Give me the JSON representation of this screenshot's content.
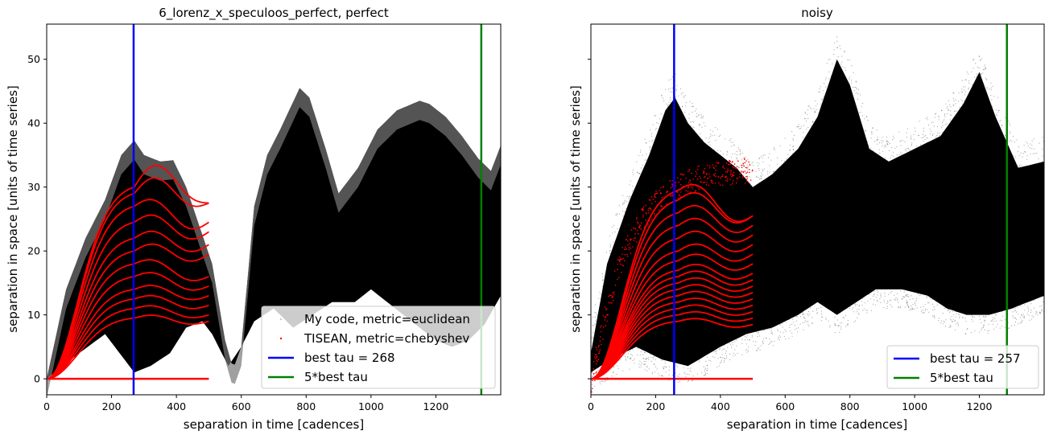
{
  "chart_data": [
    {
      "type": "scatter",
      "title": "6_lorenz_x_speculoos_perfect, perfect",
      "xlabel": "separation in time [cadences]",
      "ylabel": "separation in space [units of time series]",
      "xlim": [
        0,
        1400
      ],
      "ylim": [
        -2.5,
        55.5
      ],
      "xticks": [
        0,
        200,
        400,
        600,
        800,
        1000,
        1200
      ],
      "yticks": [
        0,
        10,
        20,
        30,
        40,
        50
      ],
      "colors": {
        "cloud": "#000000",
        "tisean": "#ff0000",
        "best_tau": "#0000ff",
        "five_tau": "#008000"
      },
      "cloud_upper": [
        [
          0,
          0
        ],
        [
          60,
          14
        ],
        [
          120,
          22
        ],
        [
          180,
          28
        ],
        [
          230,
          35
        ],
        [
          270,
          37.3
        ],
        [
          300,
          35
        ],
        [
          350,
          34
        ],
        [
          390,
          34.2
        ],
        [
          430,
          30
        ],
        [
          470,
          24
        ],
        [
          510,
          18
        ],
        [
          550,
          6
        ],
        [
          575,
          1.5
        ],
        [
          600,
          5
        ],
        [
          640,
          27
        ],
        [
          680,
          35
        ],
        [
          720,
          39
        ],
        [
          780,
          45.5
        ],
        [
          810,
          44
        ],
        [
          860,
          36
        ],
        [
          900,
          29
        ],
        [
          960,
          33
        ],
        [
          1020,
          39
        ],
        [
          1080,
          42
        ],
        [
          1150,
          43.5
        ],
        [
          1180,
          43
        ],
        [
          1230,
          41
        ],
        [
          1280,
          38
        ],
        [
          1330,
          34.5
        ],
        [
          1370,
          32.5
        ],
        [
          1400,
          36.5
        ]
      ],
      "cloud_lower": [
        [
          0,
          0
        ],
        [
          100,
          4
        ],
        [
          180,
          7
        ],
        [
          240,
          3
        ],
        [
          270,
          1
        ],
        [
          320,
          2
        ],
        [
          380,
          4
        ],
        [
          430,
          8
        ],
        [
          480,
          9
        ],
        [
          510,
          7
        ],
        [
          560,
          2
        ],
        [
          600,
          5
        ],
        [
          640,
          9
        ],
        [
          700,
          11
        ],
        [
          760,
          8
        ],
        [
          820,
          10
        ],
        [
          880,
          12
        ],
        [
          950,
          12
        ],
        [
          1000,
          14
        ],
        [
          1100,
          10
        ],
        [
          1150,
          8
        ],
        [
          1200,
          6
        ],
        [
          1250,
          5
        ],
        [
          1300,
          6
        ],
        [
          1350,
          8.5
        ],
        [
          1400,
          13
        ]
      ],
      "tisean_curve_ends": [
        9,
        10,
        11.5,
        13,
        14.5,
        16,
        19.5,
        21,
        23,
        24.5,
        27.5
      ],
      "tisean_peaks": [
        {
          "peak": 9.5,
          "bump": 0
        },
        {
          "peak": 11,
          "bump": 0
        },
        {
          "peak": 12.5,
          "bump": 0
        },
        {
          "peak": 14,
          "bump": 0
        },
        {
          "peak": 16,
          "bump": 0
        },
        {
          "peak": 18,
          "bump": 0
        },
        {
          "peak": 20,
          "bump": 0
        },
        {
          "peak": 22,
          "bump": 0
        },
        {
          "peak": 24.5,
          "bump": 0
        },
        {
          "peak": 27,
          "bump": 0
        },
        {
          "peak": 29,
          "bump": 1
        },
        {
          "peak": 30,
          "bump": 2
        }
      ],
      "tisean_baseline": {
        "x": [
          0,
          500
        ],
        "y": 0
      },
      "vlines": [
        {
          "x": 268,
          "label": "best tau = 268",
          "color": "#0000ff"
        },
        {
          "x": 1340,
          "label": "5*best tau",
          "color": "#008000"
        }
      ],
      "legend": {
        "position": "lower-right",
        "entries": [
          {
            "label": "My code, metric=euclidean",
            "kind": "cloud",
            "color": "#c8c8c8"
          },
          {
            "label": "TISEAN, metric=chebyshev",
            "kind": "dot",
            "color": "#ff0000"
          },
          {
            "label": "best tau = 268",
            "kind": "line",
            "color": "#0000ff"
          },
          {
            "label": "5*best tau",
            "kind": "line",
            "color": "#008000"
          }
        ]
      }
    },
    {
      "type": "scatter",
      "title": "noisy",
      "xlabel": "separation in time [cadences]",
      "ylabel": "separation in space [units of time series]",
      "xlim": [
        0,
        1400
      ],
      "ylim": [
        -2.5,
        55.5
      ],
      "xticks": [
        0,
        200,
        400,
        600,
        800,
        1000,
        1200
      ],
      "yticks": [
        0,
        10,
        20,
        30,
        40,
        50
      ],
      "colors": {
        "cloud": "#000000",
        "tisean": "#ff0000",
        "best_tau": "#0000ff",
        "five_tau": "#008000"
      },
      "cloud_upper": [
        [
          0,
          4
        ],
        [
          50,
          18
        ],
        [
          120,
          28
        ],
        [
          180,
          35
        ],
        [
          230,
          42
        ],
        [
          260,
          44
        ],
        [
          300,
          40
        ],
        [
          350,
          37
        ],
        [
          400,
          35
        ],
        [
          450,
          33
        ],
        [
          500,
          30
        ],
        [
          560,
          32
        ],
        [
          640,
          36
        ],
        [
          700,
          41
        ],
        [
          760,
          50
        ],
        [
          800,
          46
        ],
        [
          860,
          36
        ],
        [
          920,
          34
        ],
        [
          1000,
          36
        ],
        [
          1080,
          38
        ],
        [
          1150,
          43
        ],
        [
          1200,
          48
        ],
        [
          1250,
          41
        ],
        [
          1320,
          33
        ],
        [
          1400,
          34
        ]
      ],
      "cloud_lower": [
        [
          0,
          1
        ],
        [
          60,
          3
        ],
        [
          140,
          5
        ],
        [
          220,
          3
        ],
        [
          300,
          2
        ],
        [
          400,
          5
        ],
        [
          480,
          7
        ],
        [
          560,
          8
        ],
        [
          640,
          10
        ],
        [
          700,
          12
        ],
        [
          760,
          10
        ],
        [
          820,
          12
        ],
        [
          880,
          14
        ],
        [
          960,
          14
        ],
        [
          1040,
          13
        ],
        [
          1100,
          11
        ],
        [
          1160,
          10
        ],
        [
          1230,
          10
        ],
        [
          1300,
          11
        ],
        [
          1400,
          13
        ]
      ],
      "tisean_curve_ends": [
        8.5,
        9.5,
        10.5,
        11.5,
        12.5,
        13.5,
        14.5,
        15.5,
        16.5,
        18,
        19.5,
        21,
        22.5,
        24,
        25.5
      ],
      "tisean_peaks": [
        {
          "peak": 9,
          "bump": 0
        },
        {
          "peak": 10,
          "bump": 0
        },
        {
          "peak": 11,
          "bump": 0
        },
        {
          "peak": 12,
          "bump": 0
        },
        {
          "peak": 13,
          "bump": 0
        },
        {
          "peak": 14,
          "bump": 0
        },
        {
          "peak": 15,
          "bump": 0
        },
        {
          "peak": 16,
          "bump": 0
        },
        {
          "peak": 17,
          "bump": 0
        },
        {
          "peak": 18.5,
          "bump": 0
        },
        {
          "peak": 20,
          "bump": 0
        },
        {
          "peak": 22,
          "bump": 0
        },
        {
          "peak": 24,
          "bump": 0
        },
        {
          "peak": 26,
          "bump": 0
        },
        {
          "peak": 28,
          "bump": 0
        },
        {
          "peak": 29.5,
          "bump": 0
        }
      ],
      "tisean_scatter_band": {
        "x_range": [
          0,
          500
        ],
        "y_peak": 35
      },
      "tisean_baseline": {
        "x": [
          0,
          500
        ],
        "y": 0
      },
      "vlines": [
        {
          "x": 257,
          "label": "best tau = 257",
          "color": "#0000ff"
        },
        {
          "x": 1285,
          "label": "5*best tau",
          "color": "#008000"
        }
      ],
      "legend": {
        "position": "lower-right",
        "entries": [
          {
            "label": "best tau = 257",
            "kind": "line",
            "color": "#0000ff"
          },
          {
            "label": "5*best tau",
            "kind": "line",
            "color": "#008000"
          }
        ]
      }
    }
  ]
}
